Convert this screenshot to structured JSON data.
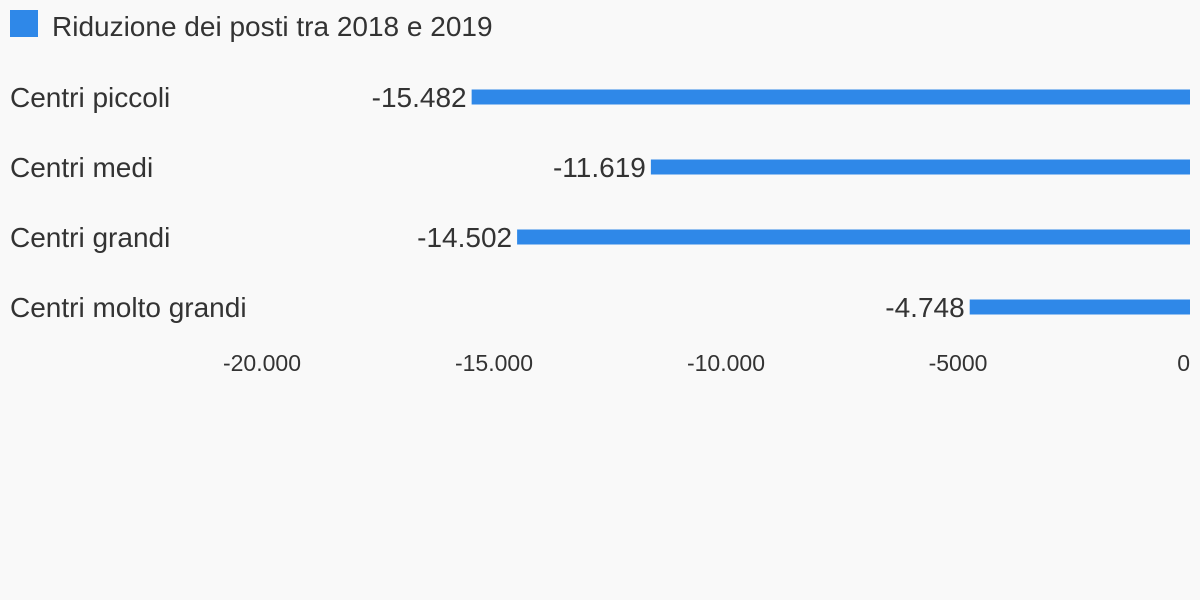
{
  "chart_data": {
    "type": "bar",
    "orientation": "horizontal",
    "title": "",
    "xlabel": "",
    "ylabel": "",
    "categories": [
      "Centri piccoli",
      "Centri medi",
      "Centri grandi",
      "Centri molto grandi"
    ],
    "series": [
      {
        "name": "Riduzione dei posti tra 2018 e 2019",
        "values": [
          -15482,
          -11619,
          -14502,
          -4748
        ],
        "value_labels": [
          "-15.482",
          "-11.619",
          "-14.502",
          "-4.748"
        ],
        "color": "#2f88e8"
      }
    ],
    "xlim": [
      -20000,
      0
    ],
    "x_ticks": [
      -20000,
      -15000,
      -10000,
      -5000,
      0
    ],
    "x_tick_labels": [
      "-20.000",
      "-15.000",
      "-10.000",
      "-5000",
      "0"
    ],
    "legend_position": "top-left",
    "grid": false
  }
}
